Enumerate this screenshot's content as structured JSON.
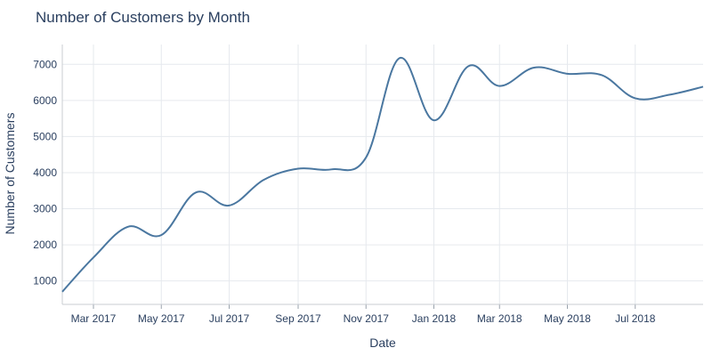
{
  "chart_data": {
    "type": "line",
    "title": "Number of Customers by Month",
    "xlabel": "Date",
    "ylabel": "Number of Customers",
    "x_tick_labels": [
      "Mar 2017",
      "May 2017",
      "Jul 2017",
      "Sep 2017",
      "Nov 2017",
      "Jan 2018",
      "Mar 2018",
      "May 2018",
      "Jul 2018"
    ],
    "x_tick_dates": [
      "2017-03-01",
      "2017-05-01",
      "2017-07-01",
      "2017-09-01",
      "2017-11-01",
      "2018-01-01",
      "2018-03-01",
      "2018-05-01",
      "2018-07-01"
    ],
    "y_ticks": [
      1000,
      2000,
      3000,
      4000,
      5000,
      6000,
      7000
    ],
    "xlim": [
      "2017-02-01",
      "2018-08-31"
    ],
    "ylim": [
      350,
      7550
    ],
    "grid": true,
    "legend": "none",
    "series": [
      {
        "color": "#4a77a0",
        "x": [
          "2017-02-01",
          "2017-03-01",
          "2017-04-01",
          "2017-05-01",
          "2017-06-01",
          "2017-07-01",
          "2017-08-01",
          "2017-09-01",
          "2017-10-01",
          "2017-11-01",
          "2017-12-01",
          "2018-01-01",
          "2018-02-01",
          "2018-03-01",
          "2018-04-01",
          "2018-05-01",
          "2018-06-01",
          "2018-07-01",
          "2018-08-01",
          "2018-08-31"
        ],
        "values": [
          700,
          1650,
          2500,
          2270,
          3450,
          3090,
          3800,
          4110,
          4090,
          4420,
          7170,
          5450,
          6950,
          6400,
          6910,
          6740,
          6700,
          6060,
          6160,
          6380
        ]
      }
    ]
  }
}
